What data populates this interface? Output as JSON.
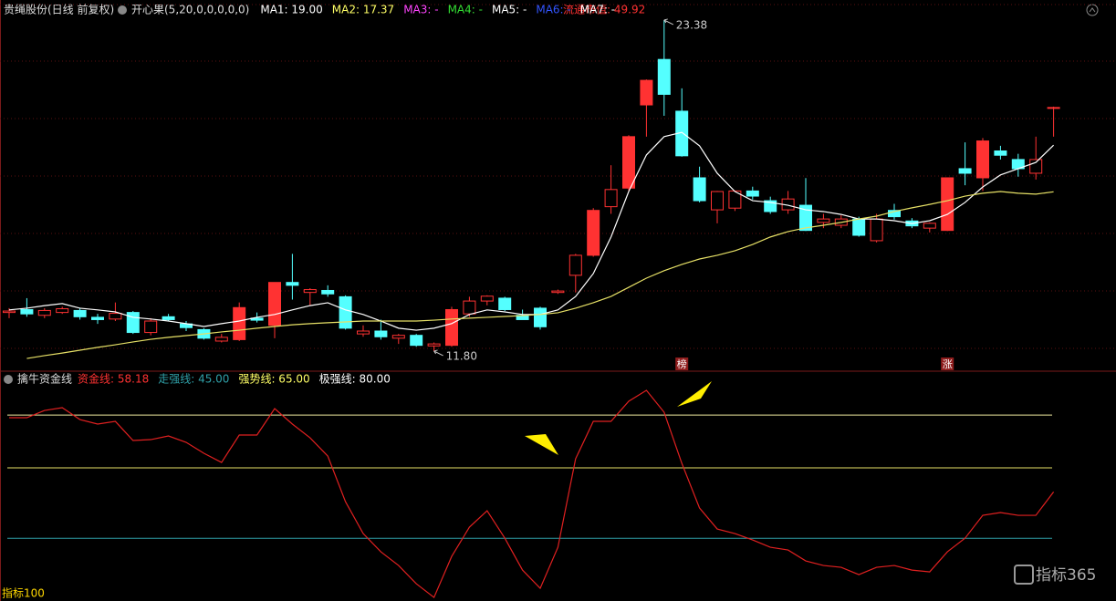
{
  "chart_data": [
    {
      "type": "candlestick",
      "title": "贵绳股份(日线 前复权)",
      "subtitle": "开心果(5,20,0,0,0,0,0)",
      "legend": [
        {
          "text": "MA1: 19.00",
          "color": "#ffffff"
        },
        {
          "text": "MA2: 17.37",
          "color": "#ffff66"
        },
        {
          "text": "MA3: -",
          "color": "#ff44ff"
        },
        {
          "text": "MA4: -",
          "color": "#33dd33"
        },
        {
          "text": "MA5: -",
          "color": "#ffffff"
        },
        {
          "text": "MA6: -",
          "color": "#3355ff"
        },
        {
          "text": "MA7: -",
          "color": "#ffffff"
        }
      ],
      "market_value": "流通市值: 49.92",
      "up_color": "#ff3232",
      "down_color": "#54ffff",
      "ylim": [
        11.16,
        24.08
      ],
      "open": [
        13.15,
        13.25,
        13.05,
        13.15,
        13.22,
        12.98,
        12.92,
        13.15,
        12.45,
        13.0,
        12.75,
        12.55,
        12.15,
        12.2,
        12.95,
        12.7,
        14.2,
        13.85,
        13.92,
        13.7,
        12.4,
        12.5,
        12.25,
        12.35,
        11.98,
        12.0,
        13.1,
        13.55,
        13.65,
        13.05,
        13.3,
        13.85,
        14.45,
        15.15,
        16.85,
        17.5,
        20.41,
        22.0,
        20.19,
        17.86,
        16.74,
        16.8,
        17.4,
        17.06,
        16.74,
        16.9,
        16.3,
        16.2,
        16.42,
        15.66,
        16.72,
        16.35,
        16.1,
        16.02,
        18.18,
        17.86,
        18.8,
        18.5,
        18.02,
        20.3
      ],
      "high": [
        13.3,
        13.65,
        13.3,
        13.35,
        13.3,
        13.1,
        13.5,
        13.2,
        12.95,
        13.1,
        12.85,
        12.6,
        12.4,
        13.5,
        13.15,
        14.2,
        15.2,
        14.0,
        14.1,
        13.75,
        12.7,
        12.9,
        12.4,
        12.4,
        12.1,
        13.35,
        13.7,
        13.75,
        13.7,
        13.25,
        13.35,
        13.95,
        15.2,
        16.8,
        18.3,
        19.35,
        21.3,
        23.38,
        20.99,
        18.25,
        17.4,
        17.4,
        17.55,
        17.2,
        17.4,
        17.85,
        16.6,
        16.55,
        16.5,
        16.6,
        16.95,
        16.45,
        16.3,
        17.86,
        19.1,
        19.25,
        18.98,
        18.7,
        19.3,
        20.35
      ],
      "low": [
        12.95,
        13.0,
        12.95,
        13.1,
        12.9,
        12.75,
        12.85,
        12.4,
        12.35,
        12.85,
        12.5,
        12.2,
        12.1,
        12.15,
        12.8,
        12.25,
        13.6,
        13.4,
        13.7,
        12.55,
        12.3,
        12.2,
        12.05,
        11.95,
        11.8,
        11.95,
        13.0,
        13.4,
        13.2,
        12.9,
        12.55,
        13.8,
        13.85,
        15.1,
        16.6,
        17.4,
        19.3,
        20.03,
        18.6,
        17.0,
        16.27,
        16.7,
        17.1,
        16.6,
        16.6,
        16.0,
        16.1,
        16.1,
        15.8,
        15.6,
        16.4,
        16.1,
        15.95,
        16.0,
        17.6,
        17.4,
        18.5,
        17.9,
        17.8,
        19.3
      ],
      "close": [
        13.2,
        13.1,
        13.22,
        13.28,
        13.0,
        12.9,
        13.12,
        12.45,
        12.85,
        12.9,
        12.62,
        12.25,
        12.28,
        13.32,
        12.88,
        14.2,
        14.1,
        13.95,
        13.8,
        12.6,
        12.5,
        12.3,
        12.35,
        12.0,
        12.05,
        13.25,
        13.55,
        13.72,
        13.25,
        12.9,
        12.65,
        13.9,
        15.15,
        16.72,
        17.45,
        19.3,
        21.27,
        20.78,
        18.63,
        17.06,
        17.38,
        17.4,
        17.22,
        16.68,
        17.12,
        16.02,
        16.42,
        16.42,
        15.85,
        16.42,
        16.5,
        16.18,
        16.27,
        17.86,
        18.02,
        19.15,
        18.65,
        18.18,
        18.5,
        20.32
      ],
      "lines": [
        {
          "color": "#ffffff",
          "values": [
            13.24,
            13.3,
            13.39,
            13.46,
            13.3,
            13.24,
            13.17,
            12.98,
            12.92,
            12.85,
            12.76,
            12.66,
            12.76,
            12.85,
            12.98,
            13.08,
            13.24,
            13.39,
            13.49,
            13.24,
            13.08,
            12.85,
            12.6,
            12.53,
            12.6,
            12.76,
            13.08,
            13.24,
            13.17,
            13.08,
            13.08,
            13.24,
            13.71,
            14.51,
            15.79,
            17.38,
            18.66,
            19.3,
            19.45,
            18.98,
            18.02,
            17.38,
            17.06,
            17.0,
            16.9,
            16.74,
            16.68,
            16.58,
            16.42,
            16.42,
            16.36,
            16.26,
            16.36,
            16.58,
            17.0,
            17.54,
            17.96,
            18.18,
            18.4,
            19.0
          ]
        },
        {
          "color": "#e6e066",
          "values": [
            null,
            11.54,
            11.64,
            11.73,
            11.83,
            11.93,
            12.02,
            12.12,
            12.21,
            12.28,
            12.34,
            12.4,
            12.47,
            12.53,
            12.6,
            12.66,
            12.72,
            12.76,
            12.79,
            12.82,
            12.85,
            12.85,
            12.85,
            12.85,
            12.88,
            12.92,
            12.95,
            12.98,
            13.01,
            13.04,
            13.08,
            13.14,
            13.3,
            13.49,
            13.71,
            14.03,
            14.35,
            14.61,
            14.83,
            15.02,
            15.15,
            15.31,
            15.53,
            15.79,
            15.98,
            16.11,
            16.2,
            16.3,
            16.42,
            16.52,
            16.68,
            16.81,
            16.93,
            17.06,
            17.22,
            17.32,
            17.38,
            17.32,
            17.29,
            17.37
          ]
        }
      ],
      "high_label": "23.38",
      "low_label": "11.80",
      "signals": [
        null,
        null,
        null,
        null,
        null,
        null,
        null,
        null,
        null,
        null,
        null,
        null,
        null,
        null,
        null,
        null,
        null,
        null,
        null,
        null,
        null,
        null,
        null,
        null,
        null,
        null,
        null,
        null,
        null,
        null,
        null,
        null,
        null,
        null,
        null,
        null,
        null,
        null,
        "榜",
        null,
        null,
        null,
        null,
        null,
        null,
        null,
        null,
        null,
        null,
        null,
        null,
        null,
        null,
        "涨",
        null,
        null,
        null,
        null,
        null,
        null
      ],
      "signal_color": "#8e1c1c"
    },
    {
      "type": "line",
      "title": "擒牛资金线",
      "legend": [
        {
          "text": "资金线: 58.18",
          "color": "#ff3232"
        },
        {
          "text": "走强线: 45.00",
          "color": "#2fa0a8"
        },
        {
          "text": "强势线: 65.00",
          "color": "#ffff66"
        },
        {
          "text": "极强线: 80.00",
          "color": "#ffffff"
        }
      ],
      "ylim": [
        27.2,
        87.8
      ],
      "levels": [
        {
          "value": 45,
          "color": "#2f9fa8"
        },
        {
          "value": 65,
          "color": "#e6e066"
        },
        {
          "value": 80,
          "color": "#f0eaa0"
        }
      ],
      "series": [
        {
          "color": "#e02020",
          "values": [
            79.25,
            79.25,
            81.32,
            82.1,
            78.73,
            77.44,
            78.21,
            72.77,
            73.03,
            74.07,
            72.25,
            69.15,
            66.55,
            74.33,
            74.33,
            81.84,
            77.44,
            73.55,
            68.37,
            55.41,
            46.35,
            41.17,
            37.28,
            32.1,
            28.21,
            39.87,
            48.16,
            52.82,
            45.05,
            35.98,
            30.8,
            42.46,
            67.59,
            78.21,
            78.21,
            83.91,
            87.02,
            80.8,
            66.3,
            53.6,
            47.64,
            46.35,
            44.53,
            42.46,
            41.68,
            38.58,
            37.28,
            36.76,
            34.69,
            36.76,
            37.28,
            35.98,
            35.47,
            41.17,
            45.05,
            51.53,
            52.31,
            51.53,
            51.53,
            58.18
          ]
        }
      ],
      "footer": "指标100"
    }
  ],
  "watermark": "指标365"
}
